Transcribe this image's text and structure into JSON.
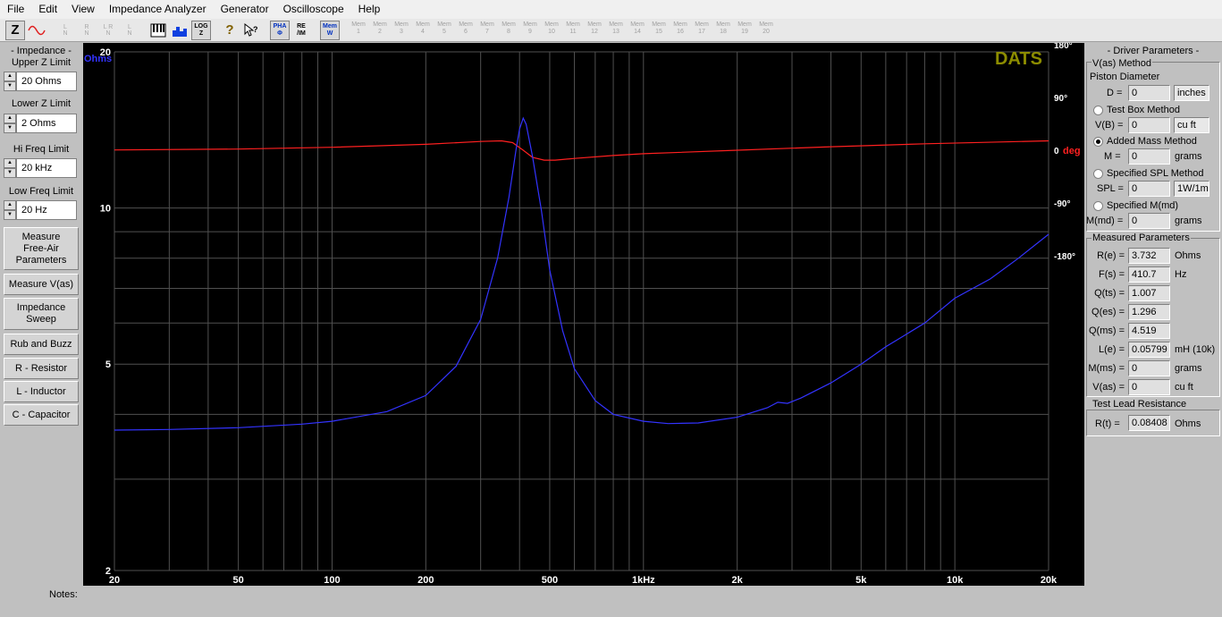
{
  "menu": [
    "File",
    "Edit",
    "View",
    "Impedance Analyzer",
    "Generator",
    "Oscilloscope",
    "Help"
  ],
  "toolbar": {
    "z_label": "Z",
    "lr_buttons": [
      "L\nN",
      "R\nN",
      "L R\nN",
      "L\nN"
    ],
    "log_label": "LOG\nZ",
    "help_label": "?",
    "pha_label": "PHA\nΦ",
    "reim_label": "RE\n/IM",
    "mem_label": "Mem\nW",
    "mem_slots": [
      "Mem\n1",
      "Mem\n2",
      "Mem\n3",
      "Mem\n4",
      "Mem\n5",
      "Mem\n6",
      "Mem\n7",
      "Mem\n8",
      "Mem\n9",
      "Mem\n10",
      "Mem\n11",
      "Mem\n12",
      "Mem\n13",
      "Mem\n14",
      "Mem\n15",
      "Mem\n16",
      "Mem\n17",
      "Mem\n18",
      "Mem\n19",
      "Mem\n20"
    ]
  },
  "left": {
    "impedance_title": "- Impedance -",
    "upper_label": "Upper Z Limit",
    "upper_value": "20 Ohms",
    "lower_label": "Lower Z Limit",
    "lower_value": "2 Ohms",
    "hi_label": "Hi Freq Limit",
    "hi_value": "20 kHz",
    "low_label": "Low Freq Limit",
    "low_value": "20 Hz",
    "buttons": [
      "Measure\nFree-Air\nParameters",
      "Measure V(as)",
      "Impedance\nSweep",
      "Rub and Buzz",
      "R - Resistor",
      "L - Inductor",
      "C - Capacitor"
    ]
  },
  "notes_label": "Notes:",
  "right": {
    "driver_title": "- Driver Parameters -",
    "vas_method": "V(as) Method",
    "piston": "Piston Diameter",
    "d_label": "D =",
    "d_value": "0",
    "d_unit": "inches",
    "test_box": "Test Box Method",
    "vb_label": "V(B) =",
    "vb_value": "0",
    "vb_unit": "cu ft",
    "added_mass": "Added Mass Method",
    "m_label": "M =",
    "m_value": "0",
    "m_unit": "grams",
    "spl_method": "Specified SPL Method",
    "spl_label": "SPL =",
    "spl_value": "0",
    "spl_unit": "1W/1m",
    "mmd_method": "Specified M(md)",
    "mmd_label": "M(md) =",
    "mmd_value": "0",
    "mmd_unit": "grams",
    "measured_title": "Measured Parameters",
    "params": [
      {
        "label": "R(e) =",
        "value": "3.732",
        "unit": "Ohms"
      },
      {
        "label": "F(s) =",
        "value": "410.7",
        "unit": "Hz"
      },
      {
        "label": "Q(ts) =",
        "value": "1.007",
        "unit": ""
      },
      {
        "label": "Q(es) =",
        "value": "1.296",
        "unit": ""
      },
      {
        "label": "Q(ms) =",
        "value": "4.519",
        "unit": ""
      },
      {
        "label": "L(e) =",
        "value": "0.05799",
        "unit": "mH (10k)"
      },
      {
        "label": "M(ms) =",
        "value": "0",
        "unit": "grams"
      },
      {
        "label": "V(as) =",
        "value": "0",
        "unit": "cu ft"
      }
    ],
    "lead_title": "Test Lead Resistance",
    "rt_label": "R(t) =",
    "rt_value": "0.08408",
    "rt_unit": "Ohms"
  },
  "chart_data": {
    "type": "line",
    "brand": "DATS",
    "ylabel_left": "Ohms",
    "ylabel_right": "deg",
    "xscale": "log",
    "yscale": "log",
    "xlim": [
      20,
      20000
    ],
    "ylim": [
      2,
      20
    ],
    "y2lim": [
      -180,
      180
    ],
    "x_ticks": [
      {
        "v": 20,
        "t": "20"
      },
      {
        "v": 50,
        "t": "50"
      },
      {
        "v": 100,
        "t": "100"
      },
      {
        "v": 200,
        "t": "200"
      },
      {
        "v": 500,
        "t": "500"
      },
      {
        "v": 1000,
        "t": "1kHz"
      },
      {
        "v": 2000,
        "t": "2k"
      },
      {
        "v": 5000,
        "t": "5k"
      },
      {
        "v": 10000,
        "t": "10k"
      },
      {
        "v": 20000,
        "t": "20k"
      }
    ],
    "y_ticks": [
      {
        "v": 20,
        "t": "20"
      },
      {
        "v": 10,
        "t": "10"
      },
      {
        "v": 5,
        "t": "5"
      },
      {
        "v": 2,
        "t": "2"
      }
    ],
    "y2_ticks": [
      {
        "v": 180,
        "t": "180°"
      },
      {
        "v": 90,
        "t": "90°"
      },
      {
        "v": 0,
        "t": "0"
      },
      {
        "v": -90,
        "t": "-90°"
      },
      {
        "v": -180,
        "t": "-180°"
      }
    ],
    "grid": true,
    "colors": {
      "impedance": "#3333ff",
      "phase": "#ff2020",
      "brand": "#8c8c00",
      "grid": "#505050"
    },
    "series": [
      {
        "name": "Impedance",
        "x": [
          20,
          30,
          50,
          80,
          100,
          150,
          200,
          250,
          300,
          340,
          370,
          390,
          400,
          411,
          420,
          440,
          470,
          500,
          550,
          600,
          700,
          800,
          1000,
          1200,
          1500,
          2000,
          2500,
          2700,
          2900,
          3200,
          4000,
          5000,
          6000,
          8000,
          10000,
          13000,
          16000,
          20000
        ],
        "values": [
          3.73,
          3.74,
          3.77,
          3.83,
          3.88,
          4.05,
          4.35,
          4.95,
          6.1,
          8.0,
          10.5,
          13.0,
          14.2,
          14.9,
          14.5,
          12.6,
          9.9,
          7.6,
          5.8,
          4.9,
          4.25,
          4.0,
          3.88,
          3.84,
          3.85,
          3.95,
          4.12,
          4.22,
          4.2,
          4.3,
          4.6,
          5.0,
          5.4,
          6.0,
          6.7,
          7.3,
          8.0,
          8.9
        ]
      },
      {
        "name": "Phase",
        "x": [
          20,
          50,
          100,
          200,
          300,
          350,
          380,
          411,
          440,
          480,
          520,
          600,
          800,
          1000,
          2000,
          4000,
          8000,
          20000
        ],
        "values": [
          0.5,
          2,
          5,
          10,
          15,
          16,
          13,
          0,
          -12,
          -17,
          -17,
          -14,
          -9,
          -6,
          0,
          6,
          11,
          16
        ]
      }
    ]
  }
}
